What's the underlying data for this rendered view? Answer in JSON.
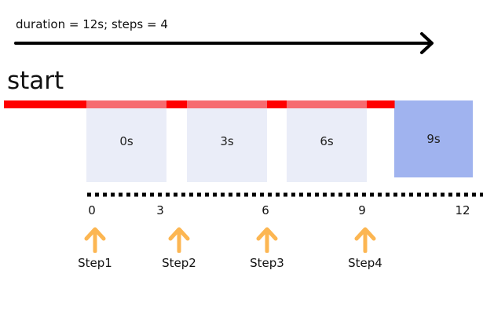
{
  "caption": "duration = 12s; steps = 4",
  "start_label": "start",
  "boxes": [
    {
      "label": "0s",
      "highlighted": false
    },
    {
      "label": "3s",
      "highlighted": false
    },
    {
      "label": "6s",
      "highlighted": false
    },
    {
      "label": "9s",
      "highlighted": true
    }
  ],
  "ticks": [
    "0",
    "3",
    "6",
    "9",
    "12"
  ],
  "steps": [
    "Step1",
    "Step2",
    "Step3",
    "Step4"
  ],
  "colors": {
    "timeline_red": "#ff0000",
    "box_light": "#eaedf8",
    "box_highlight": "#a0b3ef",
    "arrow_orange": "#fcb652",
    "black": "#000000"
  },
  "icons": {
    "step_marker": "up-arrow-icon",
    "direction": "right-arrow-icon"
  }
}
